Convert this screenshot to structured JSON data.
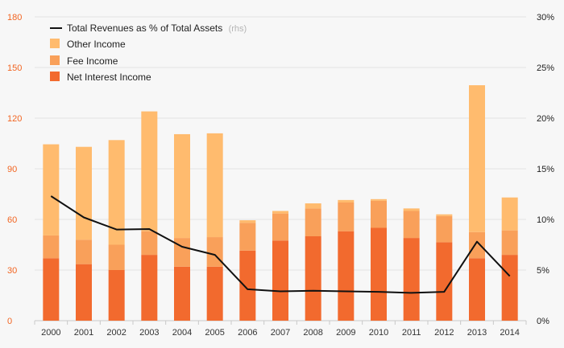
{
  "chart_data": {
    "type": "bar",
    "stacked": true,
    "categories": [
      "2000",
      "2001",
      "2002",
      "2003",
      "2004",
      "2005",
      "2006",
      "2007",
      "2008",
      "2009",
      "2010",
      "2011",
      "2012",
      "2013",
      "2014"
    ],
    "series": [
      {
        "name": "Net Interest Income",
        "color": "#f26a2e",
        "values": [
          37,
          33.5,
          30,
          39,
          32,
          32,
          41.5,
          47.5,
          50,
          53,
          55,
          49,
          46.5,
          37,
          39
        ]
      },
      {
        "name": "Fee Income",
        "color": "#f9a05a",
        "values": [
          13.5,
          14.5,
          15,
          14,
          17,
          17.5,
          16.5,
          16,
          16.5,
          17,
          16,
          16,
          15.5,
          15.5,
          14.5
        ]
      },
      {
        "name": "Other Income",
        "color": "#ffbb6e",
        "values": [
          54,
          55,
          62,
          71,
          61.5,
          61.5,
          1.5,
          1.5,
          3,
          1.5,
          1,
          1.5,
          1,
          87,
          19.5
        ]
      }
    ],
    "line_series": {
      "name": "Total Revenues as % of Total Assets",
      "name_suffix": "(rhs)",
      "color": "#111111",
      "values": [
        12.3,
        10.2,
        9.0,
        9.05,
        7.3,
        6.5,
        3.1,
        2.9,
        2.95,
        2.9,
        2.85,
        2.75,
        2.85,
        7.8,
        4.4
      ]
    },
    "y_left": {
      "min": 0,
      "max": 180,
      "ticks": [
        "0",
        "30",
        "60",
        "90",
        "120",
        "150",
        "180"
      ],
      "color": "#f26522"
    },
    "y_right": {
      "min": 0,
      "max": 30,
      "ticks": [
        "0%",
        "5%",
        "10%",
        "15%",
        "20%",
        "25%",
        "30%"
      ]
    },
    "legend_position": "top-left",
    "grid": true
  }
}
